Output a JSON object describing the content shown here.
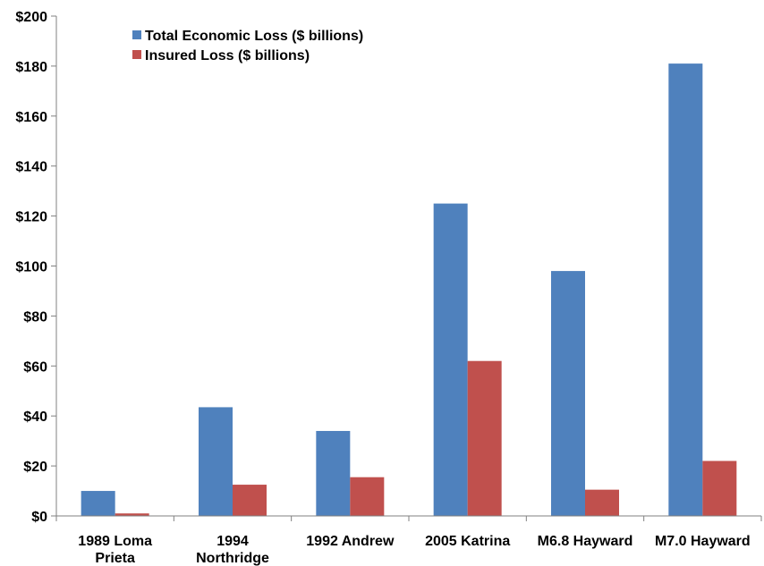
{
  "chart_data": {
    "type": "bar",
    "categories": [
      [
        "1989 Loma",
        "Prieta"
      ],
      [
        "1994",
        "Northridge"
      ],
      [
        "1992 Andrew"
      ],
      [
        "2005 Katrina"
      ],
      [
        "M6.8 Hayward"
      ],
      [
        "M7.0 Hayward"
      ]
    ],
    "series": [
      {
        "name": "Total Economic Loss ($ billions)",
        "color": "#4f81bd",
        "values": [
          10,
          43.5,
          34,
          125,
          98,
          181
        ]
      },
      {
        "name": "Insured Loss ($ billions)",
        "color": "#c0504d",
        "values": [
          1,
          12.5,
          15.5,
          62,
          10.5,
          22
        ]
      }
    ],
    "ylim": [
      0,
      200
    ],
    "ytick_step": 20,
    "ytick_prefix": "$",
    "legend_position": "top-left",
    "grid": false
  }
}
